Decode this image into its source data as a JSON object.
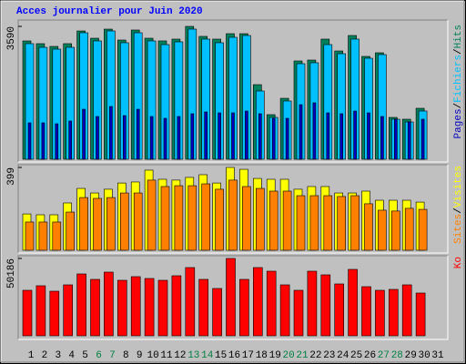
{
  "title": "Acces journalier pour Juin 2020",
  "categories": [
    1,
    2,
    3,
    4,
    5,
    6,
    7,
    8,
    9,
    10,
    11,
    12,
    13,
    14,
    15,
    16,
    17,
    18,
    19,
    20,
    21,
    22,
    23,
    24,
    25,
    26,
    27,
    28,
    29,
    30,
    31
  ],
  "highlight_categories": [
    6,
    7,
    13,
    14,
    20,
    21,
    27,
    28
  ],
  "highlight_color": "#008040",
  "legend_separator": "/",
  "chart_data": [
    {
      "type": "bar",
      "ylim": [
        0,
        3590
      ],
      "yticks": [
        3590
      ],
      "series": [
        {
          "name": "Hits",
          "color": "#00805c",
          "values": [
            3197,
            3123,
            3049,
            3123,
            3467,
            3270,
            3516,
            3221,
            3492,
            3270,
            3197,
            3246,
            3590,
            3320,
            3246,
            3393,
            3393,
            2016,
            1205,
            1647,
            2656,
            2680,
            3246,
            2926,
            3344,
            2779,
            2877,
            1131,
            1082,
            1377,
            null
          ]
        },
        {
          "name": "Fichiers",
          "color": "#00c0ff",
          "values": [
            3123,
            3024,
            2975,
            3024,
            3418,
            3197,
            3467,
            3148,
            3418,
            3197,
            3098,
            3172,
            3516,
            3246,
            3148,
            3295,
            3344,
            1844,
            1131,
            1574,
            2582,
            2607,
            3098,
            2852,
            3246,
            2729,
            2828,
            1082,
            1008,
            1303,
            null
          ]
        },
        {
          "name": "Pages",
          "color": "#0000c0",
          "values": [
            984,
            984,
            959,
            1033,
            1352,
            1156,
            1426,
            1180,
            1352,
            1156,
            1107,
            1156,
            1230,
            1279,
            1254,
            1254,
            1303,
            1230,
            1107,
            1107,
            1475,
            1525,
            1254,
            1230,
            1303,
            1254,
            1156,
            1082,
            1008,
            1082,
            null
          ]
        }
      ]
    },
    {
      "type": "bar",
      "ylim": [
        0,
        399
      ],
      "yticks": [
        399
      ],
      "series": [
        {
          "name": "Visites",
          "color": "#ffff00",
          "values": [
            175,
            171,
            171,
            228,
            298,
            276,
            294,
            324,
            329,
            386,
            342,
            338,
            351,
            364,
            324,
            399,
            390,
            346,
            342,
            342,
            294,
            307,
            307,
            276,
            276,
            285,
            241,
            241,
            241,
            232,
            null
          ]
        },
        {
          "name": "Sites",
          "color": "#ff8000",
          "values": [
            136,
            136,
            136,
            184,
            254,
            250,
            254,
            276,
            276,
            338,
            307,
            311,
            311,
            320,
            294,
            338,
            307,
            298,
            285,
            285,
            263,
            263,
            263,
            259,
            263,
            224,
            193,
            189,
            202,
            197,
            null
          ]
        }
      ]
    },
    {
      "type": "bar",
      "ylim": [
        0,
        50186
      ],
      "yticks": [
        50186
      ],
      "series": [
        {
          "name": "Ko",
          "color": "#ff0000",
          "values": [
            29520,
            32472,
            28930,
            33062,
            40147,
            36605,
            41328,
            36014,
            38376,
            37195,
            36014,
            38966,
            44280,
            36605,
            30701,
            50186,
            36605,
            44280,
            41918,
            33062,
            29520,
            41918,
            39557,
            33653,
            43099,
            31882,
            29520,
            30110,
            33062,
            27749,
            null
          ]
        }
      ]
    }
  ]
}
